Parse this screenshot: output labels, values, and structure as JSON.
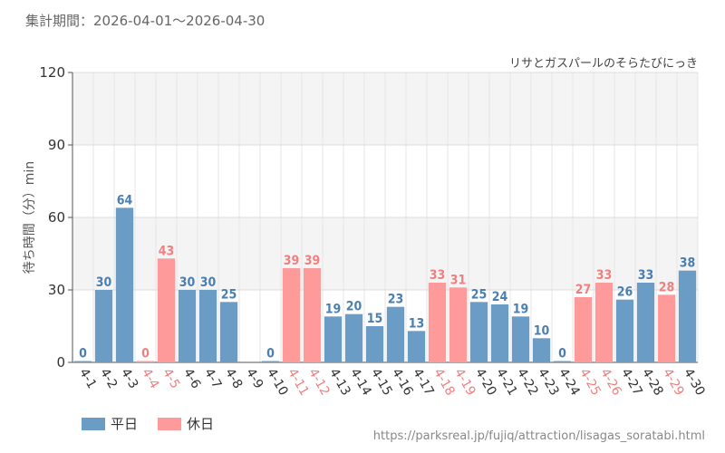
{
  "header": {
    "period_label": "集計期間：2026-04-01～2026-04-30"
  },
  "legend": {
    "weekday_label": "平日",
    "holiday_label": "休日"
  },
  "colors": {
    "weekday": "#6a9cc6",
    "holiday": "#ff9a9a",
    "weekday_text": "#4a7fb0",
    "holiday_text": "#f08080",
    "band": "#f4f4f4",
    "grid": "#dddddd"
  },
  "footer": {
    "source_url": "https://parksreal.jp/fujiq/attraction/lisagas_soratabi.html"
  },
  "chart_data": {
    "type": "bar",
    "title": "リサとガスパールのそらたびにっき",
    "ylabel": "待ち時間（分）min",
    "xlabel": "",
    "ylim": [
      0,
      120
    ],
    "yticks": [
      0,
      30,
      60,
      90,
      120
    ],
    "grid": true,
    "categories": [
      "4-1",
      "4-2",
      "4-3",
      "4-4",
      "4-5",
      "4-6",
      "4-7",
      "4-8",
      "4-9",
      "4-10",
      "4-11",
      "4-12",
      "4-13",
      "4-14",
      "4-15",
      "4-16",
      "4-17",
      "4-18",
      "4-19",
      "4-20",
      "4-21",
      "4-22",
      "4-23",
      "4-24",
      "4-25",
      "4-26",
      "4-27",
      "4-28",
      "4-29",
      "4-30"
    ],
    "values": [
      0,
      30,
      64,
      0,
      43,
      30,
      30,
      25,
      null,
      0,
      39,
      39,
      19,
      20,
      15,
      23,
      13,
      33,
      31,
      25,
      24,
      19,
      10,
      0,
      27,
      33,
      26,
      33,
      28,
      38
    ],
    "day_type": [
      "weekday",
      "weekday",
      "weekday",
      "holiday",
      "holiday",
      "weekday",
      "weekday",
      "weekday",
      "weekday",
      "weekday",
      "holiday",
      "holiday",
      "weekday",
      "weekday",
      "weekday",
      "weekday",
      "weekday",
      "holiday",
      "holiday",
      "weekday",
      "weekday",
      "weekday",
      "weekday",
      "weekday",
      "holiday",
      "holiday",
      "weekday",
      "weekday",
      "holiday",
      "weekday"
    ],
    "series": [
      {
        "name": "平日"
      },
      {
        "name": "休日"
      }
    ]
  }
}
